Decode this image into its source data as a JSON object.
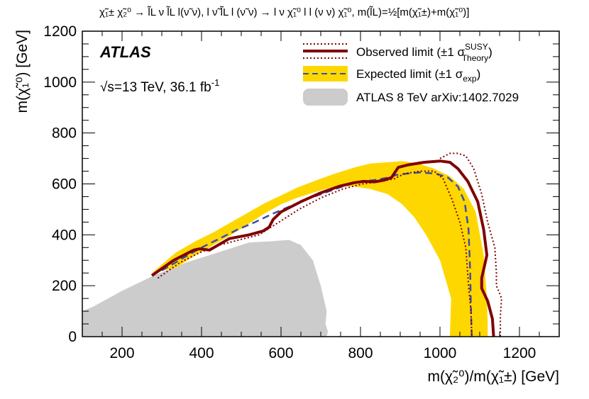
{
  "chart_data": {
    "type": "area",
    "title": "χ̃₁± χ̃₂⁰ → l̃L ν l̃L l(ν̃ ν), l ν̃ l̃L l (ν̃ ν) → l ν χ̃₁⁰ l l (ν ν) χ̃₁⁰, m(l̃L)=½[m(χ̃₁±)+m(χ̃₁⁰)]",
    "title_parts": {
      "decay": "χ̃₁± χ̃₂⁰ → l̃L ν l̃L l(ν̃ ν), l ν̃ l̃L l (ν̃ ν) → l ν χ̃₁⁰ l l (ν ν) χ̃₁⁰, m(l̃L)=",
      "half": "½",
      "mass": "[m(χ̃₁±)+m(χ̃₁⁰)]"
    },
    "xlabel": "m(χ̃₂⁰)/m(χ̃₁±) [GeV]",
    "ylabel": "m(χ̃₁⁰) [GeV]",
    "xlim": [
      100,
      1300
    ],
    "ylim": [
      0,
      1200
    ],
    "x_ticks": [
      200,
      400,
      600,
      800,
      1000,
      1200
    ],
    "y_ticks": [
      0,
      200,
      400,
      600,
      800,
      1000,
      1200
    ],
    "experiment": "ATLAS",
    "energy_label": "√s=13 TeV, 36.1 fb",
    "energy_sup": "-1",
    "legend_position": "top-right",
    "legend": [
      {
        "key": "observed",
        "label": "Observed limit (±1 σ",
        "sup": "SUSY",
        "sub": "Theory",
        "end": ")"
      },
      {
        "key": "expected",
        "label": "Expected limit (±1 σ",
        "sub": "exp",
        "end": ")"
      },
      {
        "key": "atlas8",
        "label": "ATLAS 8 TeV arXiv:1402.7029"
      }
    ],
    "series": [
      {
        "name": "ATLAS 8 TeV arXiv:1402.7029",
        "kind": "excluded-area",
        "x": [
          100,
          100,
          130,
          200,
          280,
          360,
          440,
          520,
          580,
          620,
          650,
          680,
          700,
          715,
          712,
          718,
          715
        ],
        "y": [
          0,
          100,
          120,
          180,
          240,
          290,
          330,
          370,
          375,
          380,
          360,
          300,
          200,
          100,
          50,
          20,
          0
        ]
      },
      {
        "name": "Expected limit ±1 σexp band",
        "kind": "band",
        "x": [
          275,
          335,
          385,
          430,
          475,
          520,
          560,
          600,
          640,
          690,
          735,
          785,
          825,
          868,
          905,
          945,
          985,
          1025,
          1060,
          1090,
          1110,
          1118,
          1120,
          1120,
          1025,
          1028,
          1000,
          965,
          935,
          905,
          868,
          825,
          785,
          735,
          690,
          640,
          600,
          560,
          520,
          475,
          430,
          385,
          335,
          275
        ],
        "y": [
          250,
          330,
          375,
          410,
          450,
          490,
          525,
          555,
          585,
          615,
          640,
          665,
          680,
          685,
          690,
          680,
          660,
          630,
          580,
          490,
          320,
          150,
          50,
          0,
          0,
          150,
          300,
          400,
          470,
          520,
          560,
          580,
          590,
          590,
          570,
          545,
          520,
          485,
          445,
          400,
          360,
          320,
          270,
          250
        ]
      },
      {
        "name": "Expected limit",
        "kind": "dashed-line",
        "x": [
          300,
          355,
          400,
          445,
          490,
          535,
          575,
          620,
          665,
          710,
          755,
          795,
          835,
          870,
          890,
          915,
          950,
          990,
          1020,
          1045,
          1062,
          1072,
          1076,
          1078,
          1080
        ],
        "y": [
          260,
          310,
          350,
          385,
          420,
          450,
          480,
          510,
          540,
          565,
          590,
          608,
          615,
          625,
          635,
          640,
          645,
          640,
          625,
          590,
          530,
          420,
          250,
          100,
          0
        ]
      },
      {
        "name": "Observed limit",
        "kind": "line",
        "x": [
          275,
          330,
          380,
          395,
          420,
          470,
          520,
          555,
          570,
          580,
          600,
          650,
          700,
          745,
          785,
          808,
          835,
          860,
          878,
          895,
          920,
          960,
          1000,
          1025,
          1045,
          1070,
          1095,
          1110,
          1118,
          1105,
          1105,
          1120,
          1132,
          1135
        ],
        "y": [
          240,
          300,
          340,
          345,
          340,
          385,
          400,
          415,
          430,
          460,
          490,
          530,
          565,
          590,
          605,
          610,
          608,
          615,
          625,
          665,
          675,
          685,
          690,
          685,
          660,
          610,
          530,
          420,
          320,
          230,
          190,
          140,
          70,
          0
        ]
      },
      {
        "name": "Observed limit -1 σTheory",
        "kind": "dotted-line",
        "x": [
          290,
          345,
          395,
          445,
          495,
          545,
          595,
          645,
          700,
          755,
          805,
          850,
          885,
          910,
          950,
          985,
          1008,
          1030,
          1050,
          1065,
          1072,
          1078,
          1080
        ],
        "y": [
          230,
          290,
          330,
          360,
          380,
          400,
          450,
          500,
          545,
          580,
          600,
          610,
          620,
          640,
          650,
          650,
          620,
          540,
          450,
          350,
          200,
          100,
          0
        ]
      },
      {
        "name": "Observed limit +1 σTheory",
        "kind": "dotted-line",
        "x": [
          1000,
          1025,
          1045,
          1065,
          1085,
          1105,
          1120,
          1138,
          1142,
          1142,
          1150,
          1155,
          1152,
          1152
        ],
        "y": [
          700,
          720,
          720,
          710,
          660,
          560,
          450,
          350,
          250,
          200,
          170,
          150,
          80,
          0
        ]
      }
    ]
  },
  "colors": {
    "observed": "#800000",
    "expected_band": "#FFD700",
    "expected_line": "#3B4EA7",
    "atlas8_area": "#CCCCCC",
    "frame": "#000000"
  }
}
